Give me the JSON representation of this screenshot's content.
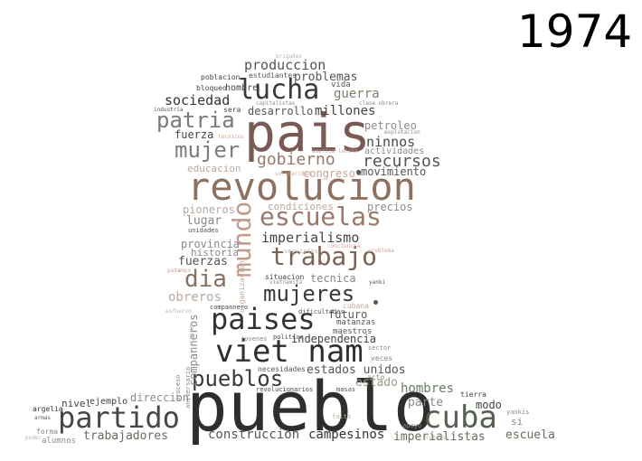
{
  "title": "1974",
  "colors": [
    "#2e2f2c",
    "#7a5a55",
    "#8e7060",
    "#a08878",
    "#c9a89a",
    "#556052",
    "#6b6b60",
    "#bbb5a8",
    "#d9a09a"
  ],
  "words": [
    {
      "text": "pueblo",
      "color": "#2e2f2c"
    },
    {
      "text": "pais",
      "color": "#7a5a55"
    },
    {
      "text": "revolucion",
      "color": "#8e7060"
    },
    {
      "text": "viet nam",
      "color": "#2e2f2c"
    },
    {
      "text": "paises",
      "color": "#333330"
    },
    {
      "text": "partido",
      "color": "#444842"
    },
    {
      "text": "cuba",
      "color": "#556052"
    },
    {
      "text": "escuelas",
      "color": "#9a7a6a"
    },
    {
      "text": "trabajo",
      "color": "#7a6255"
    },
    {
      "text": "lucha",
      "color": "#3a3a38"
    },
    {
      "text": "mundo",
      "color": "#c09a8a"
    },
    {
      "text": "mujeres",
      "color": "#3a3a38"
    },
    {
      "text": "patria",
      "color": "#7a7a78"
    },
    {
      "text": "mujer",
      "color": "#7e7d7a"
    },
    {
      "text": "dia",
      "color": "#8a7060"
    },
    {
      "text": "pueblos",
      "color": "#3a3a38"
    },
    {
      "text": "gobierno",
      "color": "#9a7a6a"
    },
    {
      "text": "recursos",
      "color": "#555552"
    },
    {
      "text": "imperialismo",
      "color": "#444442"
    },
    {
      "text": "produccion",
      "color": "#555552"
    },
    {
      "text": "sociedad",
      "color": "#333330"
    },
    {
      "text": "desarrollo",
      "color": "#555552"
    },
    {
      "text": "millones",
      "color": "#444442"
    },
    {
      "text": "guerra",
      "color": "#7a7e6a"
    },
    {
      "text": "problemas",
      "color": "#555552"
    },
    {
      "text": "ninnos",
      "color": "#4a4a48"
    },
    {
      "text": "petroleo",
      "color": "#8a8a88"
    },
    {
      "text": "fuerza",
      "color": "#444442"
    },
    {
      "text": "movimiento",
      "color": "#555552"
    },
    {
      "text": "congreso",
      "color": "#c9a89a"
    },
    {
      "text": "educacion",
      "color": "#b9aaa0"
    },
    {
      "text": "condiciones",
      "color": "#b9aaa0"
    },
    {
      "text": "precios",
      "color": "#8a8a88"
    },
    {
      "text": "pioneros",
      "color": "#b9aaa0"
    },
    {
      "text": "lugar",
      "color": "#8a8a88"
    },
    {
      "text": "provincia",
      "color": "#8a8a88"
    },
    {
      "text": "historia",
      "color": "#8a8a88"
    },
    {
      "text": "fuerzas",
      "color": "#555552"
    },
    {
      "text": "obreros",
      "color": "#b9aaa0"
    },
    {
      "text": "tecnica",
      "color": "#8a8a88"
    },
    {
      "text": "futuro",
      "color": "#555552"
    },
    {
      "text": "independencia",
      "color": "#444442"
    },
    {
      "text": "estados unidos",
      "color": "#555552"
    },
    {
      "text": "estado",
      "color": "#9a9a88"
    },
    {
      "text": "hombres",
      "color": "#6b7a66"
    },
    {
      "text": "parte",
      "color": "#8a8a88"
    },
    {
      "text": "direccion",
      "color": "#8a8a88"
    },
    {
      "text": "nivel",
      "color": "#444442"
    },
    {
      "text": "ejemplo",
      "color": "#444442"
    },
    {
      "text": "modo",
      "color": "#444442"
    },
    {
      "text": "trabajadores",
      "color": "#6b6b60"
    },
    {
      "text": "construccion",
      "color": "#555552"
    },
    {
      "text": "campesinos",
      "color": "#333330"
    },
    {
      "text": "imperialistas",
      "color": "#6b6b60"
    },
    {
      "text": "escuela",
      "color": "#6b6b60"
    },
    {
      "text": "actividades",
      "color": "#8a8a88"
    },
    {
      "text": "companneros",
      "color": "#8a8a88"
    },
    {
      "text": "necesidades",
      "color": "#555552"
    },
    {
      "text": "acto",
      "color": "#8a8a88"
    },
    {
      "text": "tierra",
      "color": "#444442"
    },
    {
      "text": "si",
      "color": "#8a8a88"
    },
    {
      "text": "vida",
      "color": "#555552"
    },
    {
      "text": "hombre",
      "color": "#444442"
    },
    {
      "text": "poblacion",
      "color": "#444442"
    },
    {
      "text": "estudiantes",
      "color": "#555552"
    },
    {
      "text": "bloqueo",
      "color": "#444442"
    },
    {
      "text": "industria",
      "color": "#555552"
    },
    {
      "text": "sera",
      "color": "#444442"
    },
    {
      "text": "capitalistas",
      "color": "#8a8a88"
    },
    {
      "text": "clase obrera",
      "color": "#8a8a88"
    },
    {
      "text": "tecnicos",
      "color": "#d9a09a"
    },
    {
      "text": "explotacion",
      "color": "#8a8a88"
    },
    {
      "text": "america latina",
      "color": "#c9a89a"
    },
    {
      "text": "solidaridad",
      "color": "#c9a89a"
    },
    {
      "text": "brigadas",
      "color": "#bbb5a8"
    },
    {
      "text": "unidades",
      "color": "#555552"
    },
    {
      "text": "servicios",
      "color": "#bbb5a8"
    },
    {
      "text": "conciencia",
      "color": "#d9a09a"
    },
    {
      "text": "problema",
      "color": "#d9a09a"
    },
    {
      "text": "situacion",
      "color": "#444442"
    },
    {
      "text": "vietnamita",
      "color": "#8a8a88"
    },
    {
      "text": "yanki",
      "color": "#555552"
    },
    {
      "text": "cubana",
      "color": "#c9a89a"
    },
    {
      "text": "compannero",
      "color": "#444442"
    },
    {
      "text": "dificultades",
      "color": "#555552"
    },
    {
      "text": "matanzas",
      "color": "#555552"
    },
    {
      "text": "maestros",
      "color": "#555552"
    },
    {
      "text": "jovenes",
      "color": "#8a8a88"
    },
    {
      "text": "politica",
      "color": "#444442"
    },
    {
      "text": "sector",
      "color": "#8a8a88"
    },
    {
      "text": "veces",
      "color": "#8a8a88"
    },
    {
      "text": "masas",
      "color": "#555552"
    },
    {
      "text": "revolucionarios",
      "color": "#444442"
    },
    {
      "text": "argelia",
      "color": "#333330"
    },
    {
      "text": "armas",
      "color": "#555552"
    },
    {
      "text": "forma",
      "color": "#8a8a88"
    },
    {
      "text": "alumnos",
      "color": "#8a8a88"
    },
    {
      "text": "poder",
      "color": "#bbb5a8"
    },
    {
      "text": "apoyo",
      "color": "#8a8a88"
    },
    {
      "text": "cubanos",
      "color": "#bbb5a8"
    },
    {
      "text": "yankis",
      "color": "#8a8a88"
    },
    {
      "text": "falta",
      "color": "#bbb5a8"
    },
    {
      "text": "campo",
      "color": "#bbb5a8"
    },
    {
      "text": "esfuerzo",
      "color": "#bbb5a8"
    },
    {
      "text": "cosas",
      "color": "#bbb5a8"
    },
    {
      "text": "organizacion",
      "color": "#c9a89a"
    },
    {
      "text": "proceso",
      "color": "#8a8a88"
    },
    {
      "text": "aniversario",
      "color": "#8a8a88"
    },
    {
      "text": "pais",
      "color": "#d9a09a"
    }
  ]
}
